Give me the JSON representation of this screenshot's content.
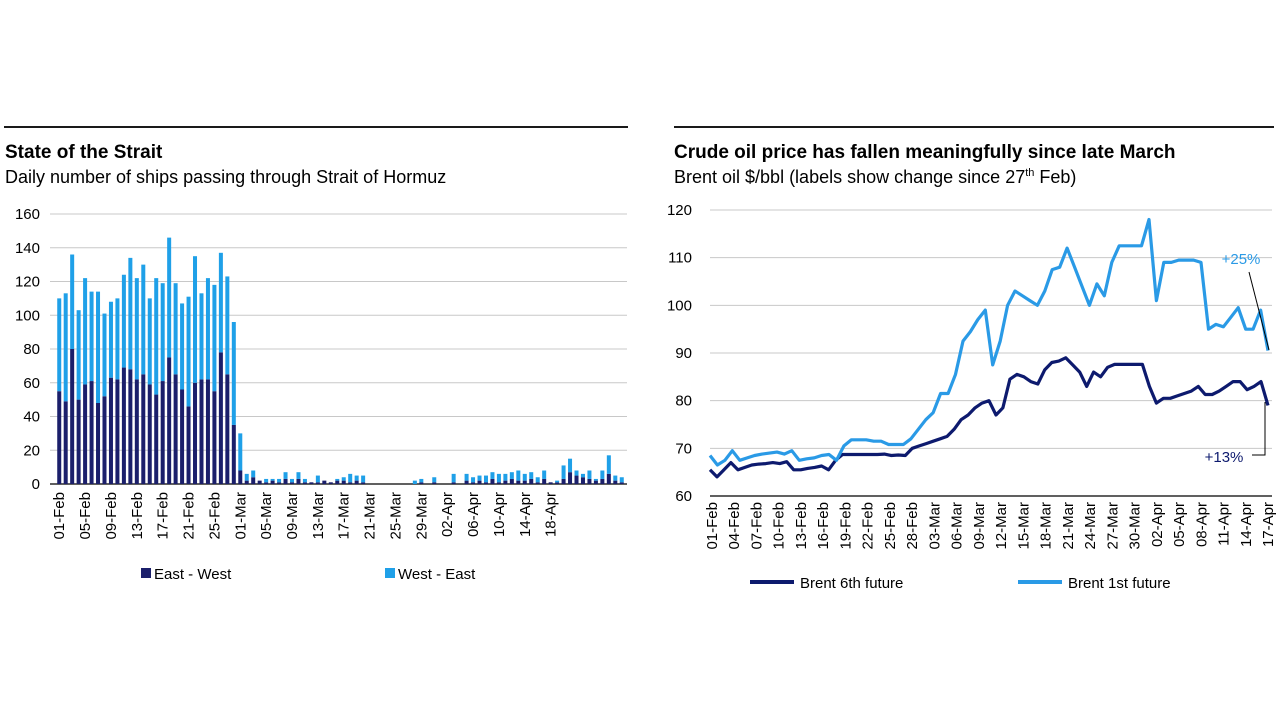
{
  "chart_data": [
    {
      "type": "bar",
      "title": "State of the Strait",
      "subtitle": "Daily number of ships passing through Strait of Hormuz",
      "ylim": [
        0,
        160
      ],
      "yticks": [
        "0",
        "20",
        "40",
        "60",
        "80",
        "100",
        "120",
        "140",
        "160"
      ],
      "xtick_labels": [
        "01-Feb",
        "05-Feb",
        "09-Feb",
        "13-Feb",
        "17-Feb",
        "21-Feb",
        "25-Feb",
        "01-Mar",
        "05-Mar",
        "09-Mar",
        "13-Mar",
        "17-Mar",
        "21-Mar",
        "25-Mar",
        "29-Mar",
        "02-Apr",
        "06-Apr",
        "10-Apr",
        "14-Apr",
        "18-Apr"
      ],
      "series": [
        {
          "name": "East - West",
          "color": "#1b1f6b",
          "values": [
            55,
            49,
            80,
            50,
            59,
            61,
            48,
            52,
            63,
            62,
            69,
            68,
            62,
            65,
            59,
            53,
            61,
            75,
            65,
            56,
            46,
            60,
            62,
            62,
            55,
            78,
            65,
            35,
            8,
            2,
            4,
            2,
            1,
            2,
            1,
            3,
            1,
            3,
            1,
            1,
            1,
            2,
            1,
            2,
            2,
            1,
            2,
            1,
            0,
            0,
            0,
            0,
            0,
            0,
            0,
            0,
            1,
            0,
            1,
            0,
            0,
            1,
            0,
            2,
            1,
            2,
            1,
            3,
            1,
            2,
            3,
            2,
            2,
            3,
            1,
            3,
            1,
            1,
            3,
            7,
            5,
            4,
            3,
            2,
            3,
            6,
            2,
            1
          ]
        },
        {
          "name": "West - East",
          "color": "#1fa0e8",
          "values": [
            55,
            64,
            56,
            53,
            63,
            53,
            66,
            49,
            45,
            48,
            55,
            66,
            60,
            65,
            51,
            69,
            58,
            71,
            54,
            51,
            65,
            75,
            51,
            60,
            63,
            59,
            58,
            61,
            22,
            4,
            4,
            0,
            2,
            1,
            2,
            4,
            2,
            4,
            2,
            0,
            4,
            0,
            0,
            1,
            2,
            5,
            3,
            4,
            0,
            0,
            0,
            0,
            0,
            0,
            0,
            2,
            2,
            0,
            3,
            0,
            0,
            5,
            0,
            4,
            3,
            3,
            4,
            4,
            5,
            4,
            4,
            6,
            4,
            4,
            3,
            5,
            0,
            1,
            8,
            8,
            3,
            2,
            5,
            1,
            5,
            11,
            3,
            3
          ]
        }
      ]
    },
    {
      "type": "line",
      "title": "Crude oil price has fallen meaningfully since late March",
      "subtitle_pre": "Brent oil $/bbl (labels show change since 27",
      "subtitle_sup": "th",
      "subtitle_post": " Feb)",
      "ylim": [
        60,
        120
      ],
      "yticks": [
        "60",
        "70",
        "80",
        "90",
        "100",
        "110",
        "120"
      ],
      "xtick_labels": [
        "01-Feb",
        "04-Feb",
        "07-Feb",
        "10-Feb",
        "13-Feb",
        "16-Feb",
        "19-Feb",
        "22-Feb",
        "25-Feb",
        "28-Feb",
        "03-Mar",
        "06-Mar",
        "09-Mar",
        "12-Mar",
        "15-Mar",
        "18-Mar",
        "21-Mar",
        "24-Mar",
        "27-Mar",
        "30-Mar",
        "02-Apr",
        "05-Apr",
        "08-Apr",
        "11-Apr",
        "14-Apr",
        "17-Apr"
      ],
      "series": [
        {
          "name": "Brent 6th future",
          "color": "#0d1a6e",
          "values": [
            65.5,
            64,
            65.5,
            67,
            65.5,
            66,
            66.5,
            66.7,
            66.8,
            67,
            66.8,
            67.2,
            65.5,
            65.5,
            65.8,
            66,
            66.3,
            65.5,
            67.5,
            68.7,
            68.7,
            68.7,
            68.7,
            68.7,
            68.7,
            68.8,
            68.5,
            68.6,
            68.5,
            70,
            70.5,
            71,
            71.5,
            72,
            72.5,
            74,
            76,
            77,
            78.5,
            79.5,
            80,
            77,
            78.5,
            84.5,
            85.5,
            85,
            84,
            83.5,
            86.5,
            88,
            88.3,
            89,
            87.5,
            86,
            83,
            86,
            85,
            87,
            87.6,
            87.6,
            87.6,
            87.6,
            87.6,
            83,
            79.5,
            80.5,
            80.5,
            81,
            81.5,
            82,
            83,
            81.3,
            81.3,
            82,
            83,
            84,
            84,
            82.3,
            83,
            84,
            79
          ]
        },
        {
          "name": "Brent 1st future",
          "color": "#2a9ae6",
          "values": [
            68.5,
            66.5,
            67.5,
            69.5,
            67.5,
            68,
            68.5,
            68.8,
            69,
            69.2,
            68.8,
            69.5,
            67.5,
            67.8,
            68,
            68.5,
            68.7,
            67.5,
            70.5,
            71.8,
            71.8,
            71.8,
            71.5,
            71.5,
            70.8,
            70.8,
            70.8,
            72,
            74,
            76,
            77.5,
            81.5,
            81.5,
            85.5,
            92.5,
            94.5,
            97,
            99,
            87.5,
            92.5,
            100,
            103,
            102,
            101,
            100,
            103,
            107.5,
            108,
            112,
            108,
            104,
            100,
            104.5,
            102,
            109,
            112.5,
            112.5,
            112.5,
            112.5,
            118,
            101,
            109,
            109,
            109.5,
            109.5,
            109.5,
            109,
            95,
            96,
            95.5,
            97.5,
            99.5,
            95,
            95,
            99,
            90.5
          ]
        }
      ],
      "annotations": [
        {
          "text": "+25%",
          "color": "#2a9ae6"
        },
        {
          "text": "+13%",
          "color": "#0d1a6e"
        }
      ]
    }
  ]
}
